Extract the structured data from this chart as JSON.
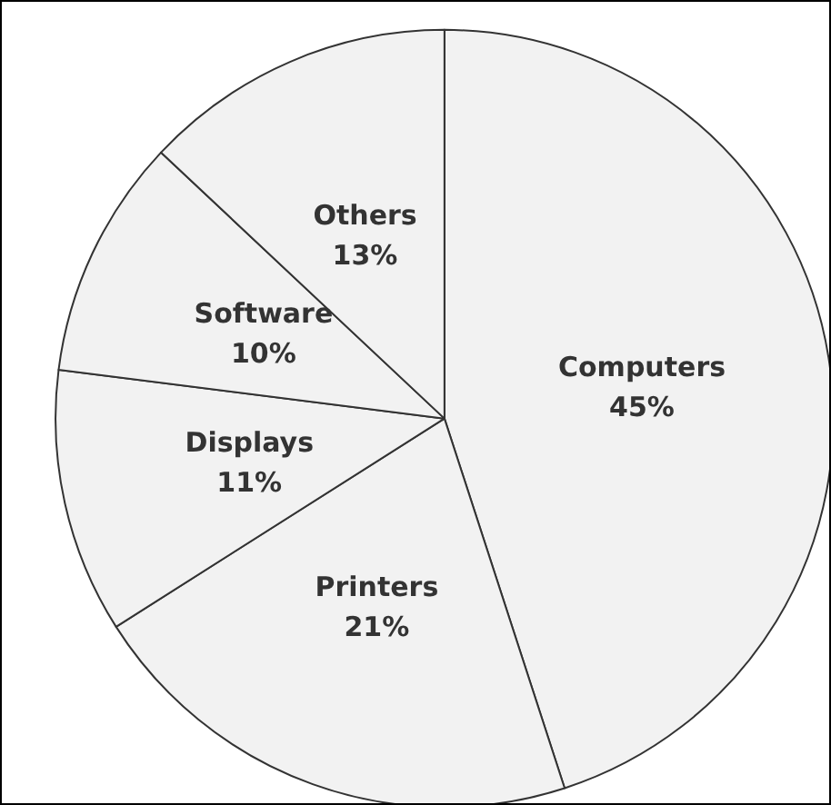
{
  "chart_data": {
    "type": "pie",
    "categories": [
      "Computers",
      "Printers",
      "Displays",
      "Software",
      "Others"
    ],
    "values": [
      45,
      21,
      11,
      10,
      13
    ],
    "value_labels": [
      "45%",
      "21%",
      "11%",
      "10%",
      "13%"
    ],
    "colors": [
      "#f2f2f2",
      "#f2f2f2",
      "#f2f2f2",
      "#f2f2f2",
      "#f2f2f2"
    ],
    "legend": false
  }
}
